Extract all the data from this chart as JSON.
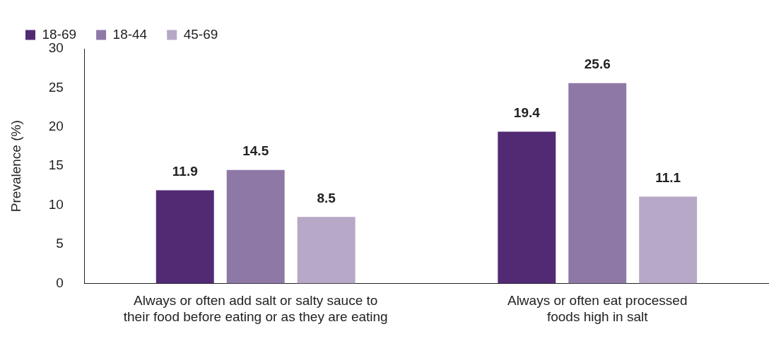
{
  "chart_data": {
    "type": "bar",
    "ylabel": "Prevalence (%)",
    "categories": [
      "Always or often add salt or salty sauce to\ntheir food before eating or as they are eating",
      "Always or often eat processed\nfoods high in salt"
    ],
    "series": [
      {
        "name": "18-69",
        "color": "#522a74",
        "values": [
          11.9,
          19.4
        ]
      },
      {
        "name": "18-44",
        "color": "#8e79a6",
        "values": [
          14.5,
          25.6
        ]
      },
      {
        "name": "45-69",
        "color": "#b6a8c6",
        "values": [
          8.5,
          11.1
        ]
      }
    ],
    "ylim": [
      0,
      30
    ],
    "yticks": [
      0,
      5,
      10,
      15,
      20,
      25,
      30
    ],
    "grid": false,
    "legend": "top",
    "data_labels": true
  }
}
